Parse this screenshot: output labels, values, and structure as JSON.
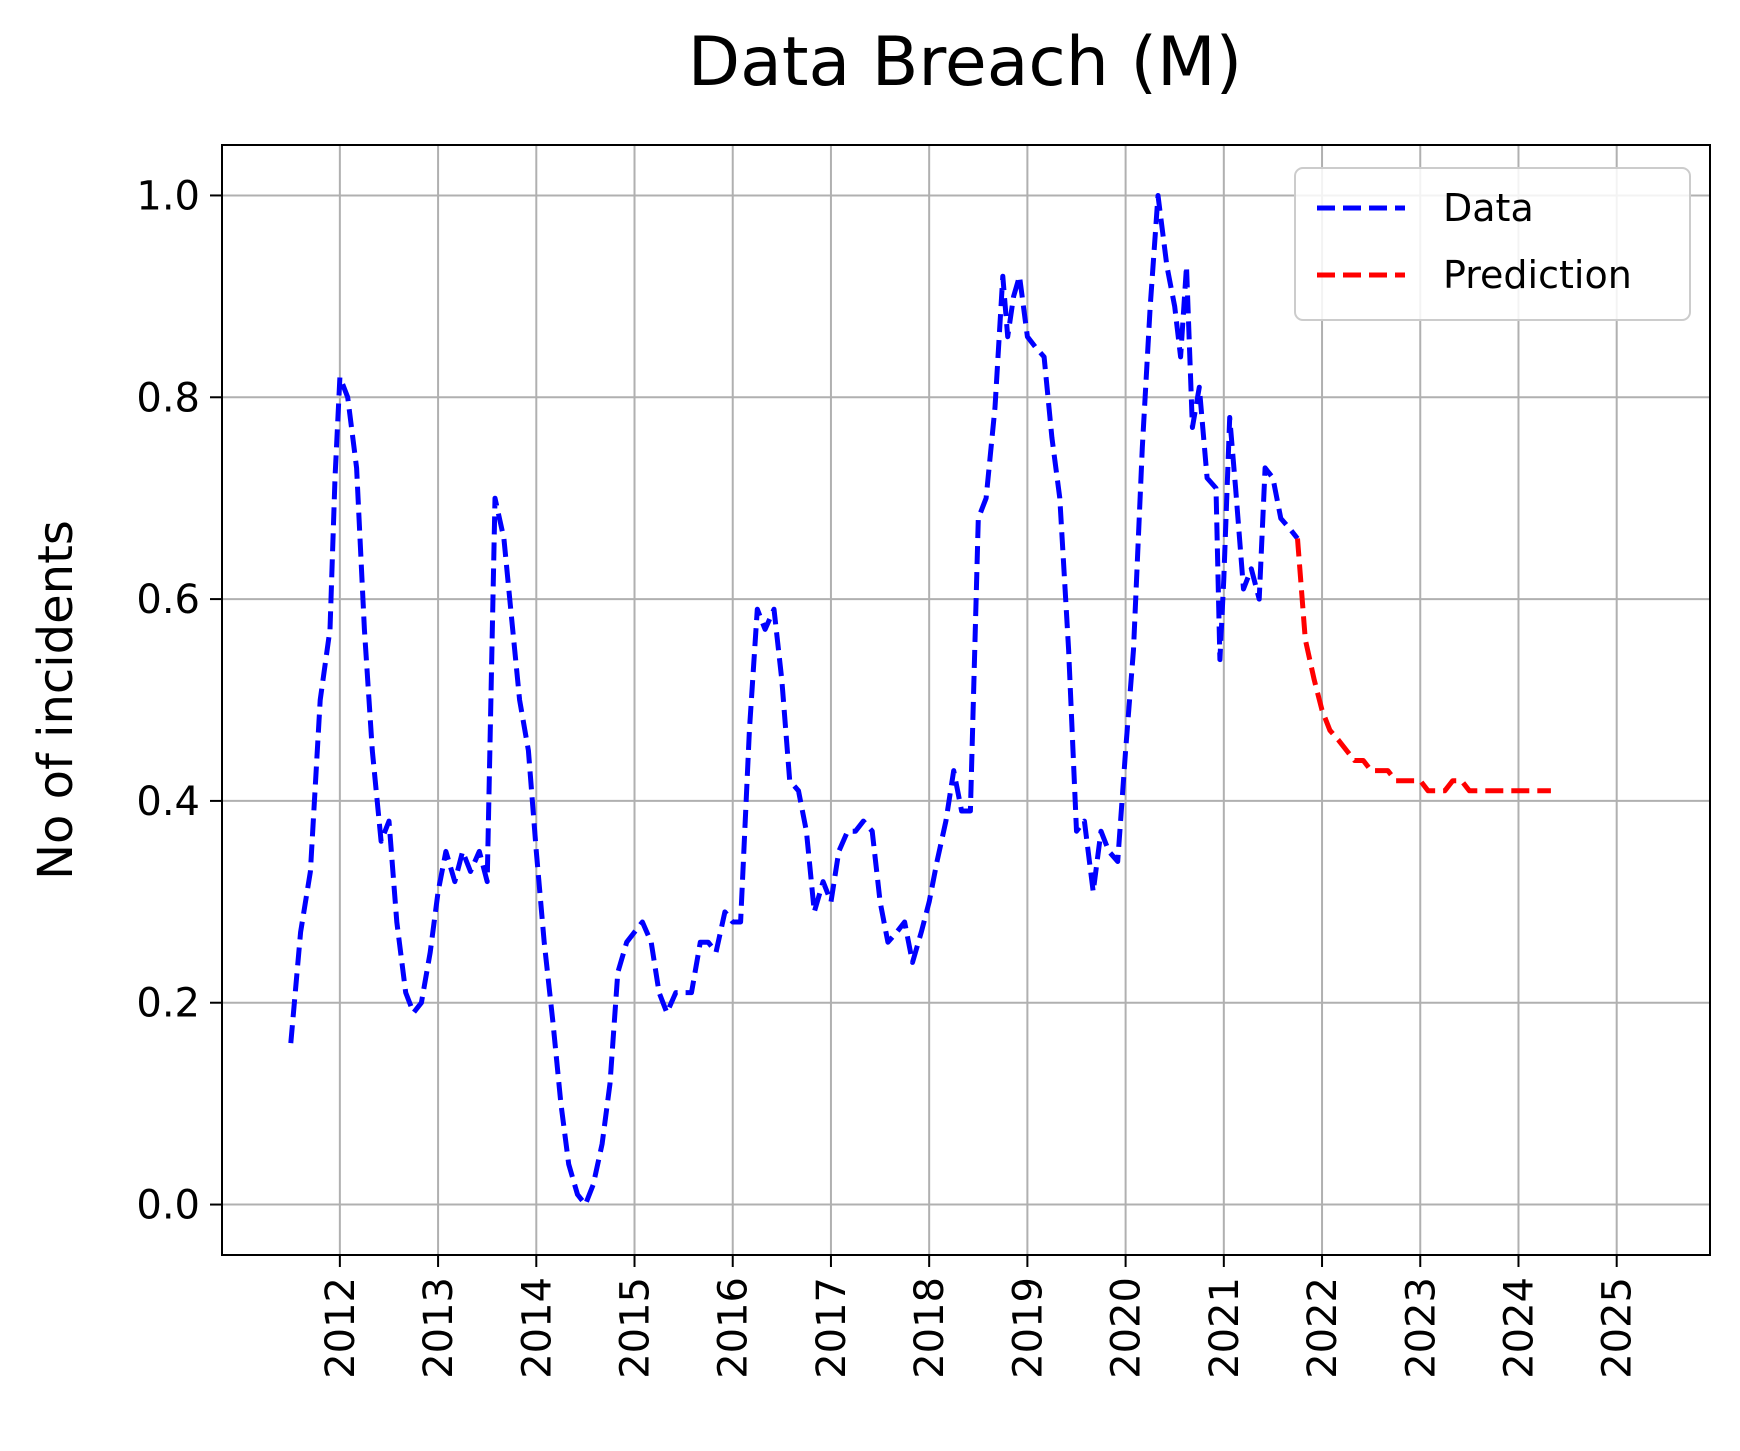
{
  "chart_data": {
    "type": "line",
    "title": "Data Breach (M)",
    "xlabel": "",
    "ylabel": "No of incidents",
    "x_ticks": [
      "2012",
      "2013",
      "2014",
      "2015",
      "2016",
      "2017",
      "2018",
      "2019",
      "2020",
      "2021",
      "2022",
      "2023",
      "2024",
      "2025"
    ],
    "y_ticks": [
      "0.0",
      "0.2",
      "0.4",
      "0.6",
      "0.8",
      "1.0"
    ],
    "xlim": [
      2010.8,
      2025.95
    ],
    "ylim": [
      -0.05,
      1.05
    ],
    "grid": true,
    "legend_position": "top-right",
    "series": [
      {
        "name": "Data",
        "color": "#0000ff",
        "style": "dashed",
        "points": [
          [
            2011.5,
            0.16
          ],
          [
            2011.6,
            0.27
          ],
          [
            2011.7,
            0.33
          ],
          [
            2011.8,
            0.5
          ],
          [
            2011.9,
            0.57
          ],
          [
            2011.95,
            0.72
          ],
          [
            2012.0,
            0.82
          ],
          [
            2012.08,
            0.8
          ],
          [
            2012.17,
            0.73
          ],
          [
            2012.25,
            0.57
          ],
          [
            2012.33,
            0.45
          ],
          [
            2012.42,
            0.36
          ],
          [
            2012.5,
            0.38
          ],
          [
            2012.58,
            0.28
          ],
          [
            2012.67,
            0.21
          ],
          [
            2012.75,
            0.19
          ],
          [
            2012.83,
            0.2
          ],
          [
            2012.92,
            0.25
          ],
          [
            2013.0,
            0.31
          ],
          [
            2013.08,
            0.35
          ],
          [
            2013.17,
            0.32
          ],
          [
            2013.25,
            0.35
          ],
          [
            2013.33,
            0.33
          ],
          [
            2013.42,
            0.35
          ],
          [
            2013.5,
            0.32
          ],
          [
            2013.58,
            0.7
          ],
          [
            2013.67,
            0.66
          ],
          [
            2013.75,
            0.58
          ],
          [
            2013.83,
            0.5
          ],
          [
            2013.92,
            0.45
          ],
          [
            2014.0,
            0.35
          ],
          [
            2014.08,
            0.26
          ],
          [
            2014.17,
            0.18
          ],
          [
            2014.25,
            0.1
          ],
          [
            2014.33,
            0.04
          ],
          [
            2014.42,
            0.01
          ],
          [
            2014.5,
            0.0
          ],
          [
            2014.58,
            0.02
          ],
          [
            2014.67,
            0.06
          ],
          [
            2014.75,
            0.12
          ],
          [
            2014.83,
            0.23
          ],
          [
            2014.92,
            0.26
          ],
          [
            2015.0,
            0.27
          ],
          [
            2015.08,
            0.28
          ],
          [
            2015.17,
            0.26
          ],
          [
            2015.25,
            0.21
          ],
          [
            2015.33,
            0.19
          ],
          [
            2015.42,
            0.21
          ],
          [
            2015.5,
            0.21
          ],
          [
            2015.58,
            0.21
          ],
          [
            2015.67,
            0.26
          ],
          [
            2015.75,
            0.26
          ],
          [
            2015.83,
            0.25
          ],
          [
            2015.92,
            0.29
          ],
          [
            2016.0,
            0.28
          ],
          [
            2016.08,
            0.28
          ],
          [
            2016.17,
            0.47
          ],
          [
            2016.25,
            0.59
          ],
          [
            2016.33,
            0.57
          ],
          [
            2016.42,
            0.59
          ],
          [
            2016.5,
            0.52
          ],
          [
            2016.58,
            0.42
          ],
          [
            2016.67,
            0.41
          ],
          [
            2016.75,
            0.37
          ],
          [
            2016.83,
            0.29
          ],
          [
            2016.92,
            0.32
          ],
          [
            2017.0,
            0.3
          ],
          [
            2017.08,
            0.35
          ],
          [
            2017.17,
            0.37
          ],
          [
            2017.25,
            0.37
          ],
          [
            2017.33,
            0.38
          ],
          [
            2017.42,
            0.37
          ],
          [
            2017.5,
            0.3
          ],
          [
            2017.58,
            0.26
          ],
          [
            2017.67,
            0.27
          ],
          [
            2017.75,
            0.28
          ],
          [
            2017.83,
            0.24
          ],
          [
            2017.92,
            0.27
          ],
          [
            2018.0,
            0.3
          ],
          [
            2018.08,
            0.34
          ],
          [
            2018.17,
            0.38
          ],
          [
            2018.25,
            0.43
          ],
          [
            2018.33,
            0.39
          ],
          [
            2018.42,
            0.39
          ],
          [
            2018.5,
            0.68
          ],
          [
            2018.58,
            0.7
          ],
          [
            2018.67,
            0.79
          ],
          [
            2018.75,
            0.92
          ],
          [
            2018.8,
            0.86
          ],
          [
            2018.86,
            0.9
          ],
          [
            2018.92,
            0.92
          ],
          [
            2019.0,
            0.86
          ],
          [
            2019.08,
            0.85
          ],
          [
            2019.17,
            0.84
          ],
          [
            2019.25,
            0.76
          ],
          [
            2019.33,
            0.7
          ],
          [
            2019.42,
            0.55
          ],
          [
            2019.5,
            0.37
          ],
          [
            2019.58,
            0.38
          ],
          [
            2019.67,
            0.31
          ],
          [
            2019.75,
            0.37
          ],
          [
            2019.83,
            0.35
          ],
          [
            2019.92,
            0.34
          ],
          [
            2020.0,
            0.45
          ],
          [
            2020.08,
            0.55
          ],
          [
            2020.17,
            0.75
          ],
          [
            2020.25,
            0.89
          ],
          [
            2020.33,
            1.0
          ],
          [
            2020.42,
            0.93
          ],
          [
            2020.5,
            0.89
          ],
          [
            2020.56,
            0.84
          ],
          [
            2020.62,
            0.93
          ],
          [
            2020.68,
            0.77
          ],
          [
            2020.75,
            0.81
          ],
          [
            2020.83,
            0.72
          ],
          [
            2020.92,
            0.71
          ],
          [
            2020.96,
            0.54
          ],
          [
            2021.0,
            0.62
          ],
          [
            2021.06,
            0.78
          ],
          [
            2021.12,
            0.71
          ],
          [
            2021.2,
            0.61
          ],
          [
            2021.28,
            0.63
          ],
          [
            2021.36,
            0.6
          ],
          [
            2021.42,
            0.73
          ],
          [
            2021.5,
            0.72
          ],
          [
            2021.58,
            0.68
          ],
          [
            2021.67,
            0.67
          ],
          [
            2021.75,
            0.66
          ]
        ]
      },
      {
        "name": "Prediction",
        "color": "#ff0000",
        "style": "dashed",
        "points": [
          [
            2021.75,
            0.66
          ],
          [
            2021.83,
            0.56
          ],
          [
            2021.92,
            0.52
          ],
          [
            2022.0,
            0.49
          ],
          [
            2022.08,
            0.47
          ],
          [
            2022.17,
            0.46
          ],
          [
            2022.25,
            0.45
          ],
          [
            2022.33,
            0.44
          ],
          [
            2022.42,
            0.44
          ],
          [
            2022.5,
            0.43
          ],
          [
            2022.58,
            0.43
          ],
          [
            2022.67,
            0.43
          ],
          [
            2022.75,
            0.42
          ],
          [
            2022.83,
            0.42
          ],
          [
            2022.92,
            0.42
          ],
          [
            2023.0,
            0.42
          ],
          [
            2023.08,
            0.41
          ],
          [
            2023.17,
            0.41
          ],
          [
            2023.25,
            0.41
          ],
          [
            2023.33,
            0.42
          ],
          [
            2023.42,
            0.42
          ],
          [
            2023.5,
            0.41
          ],
          [
            2023.58,
            0.41
          ],
          [
            2023.67,
            0.41
          ],
          [
            2023.75,
            0.41
          ],
          [
            2023.83,
            0.41
          ],
          [
            2023.92,
            0.41
          ],
          [
            2024.0,
            0.41
          ],
          [
            2024.08,
            0.41
          ],
          [
            2024.17,
            0.41
          ],
          [
            2024.25,
            0.41
          ],
          [
            2024.33,
            0.41
          ]
        ]
      }
    ]
  }
}
